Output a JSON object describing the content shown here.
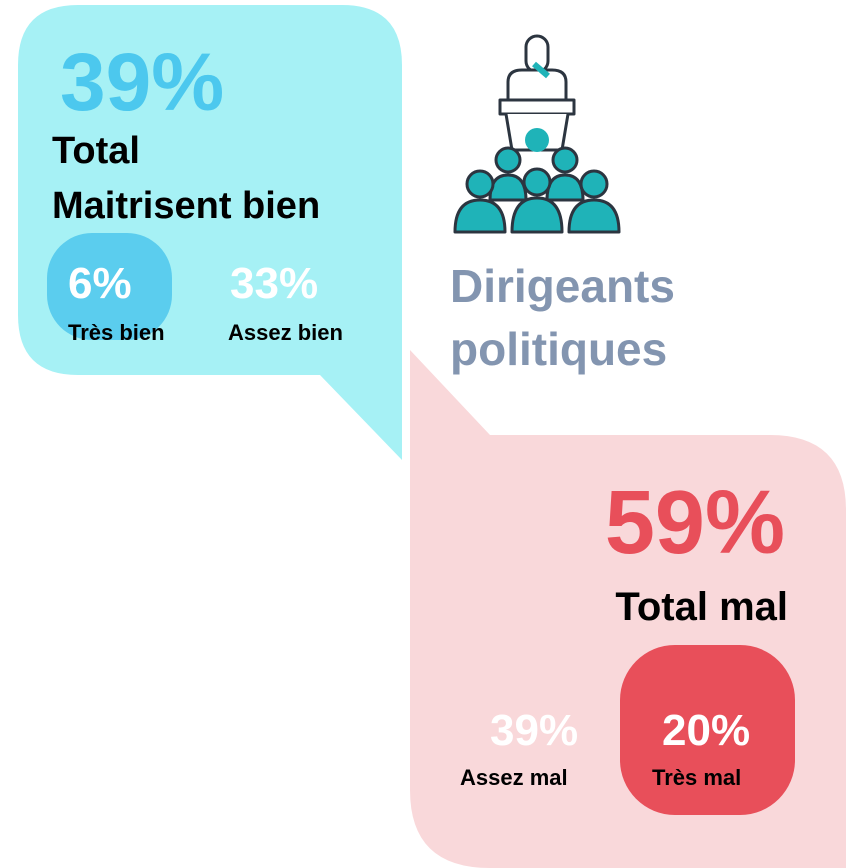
{
  "good": {
    "total": "39%",
    "label_line1": "Total",
    "label_line2": "Maitrisent bien",
    "items": [
      {
        "value": "6%",
        "label": "Très bien"
      },
      {
        "value": "33%",
        "label": "Assez bien"
      }
    ]
  },
  "title": {
    "line1": "Dirigeants",
    "line2": "politiques"
  },
  "bad": {
    "total": "59%",
    "label": "Total mal",
    "items": [
      {
        "value": "39%",
        "label": "Assez mal"
      },
      {
        "value": "20%",
        "label": "Très mal"
      }
    ]
  }
}
